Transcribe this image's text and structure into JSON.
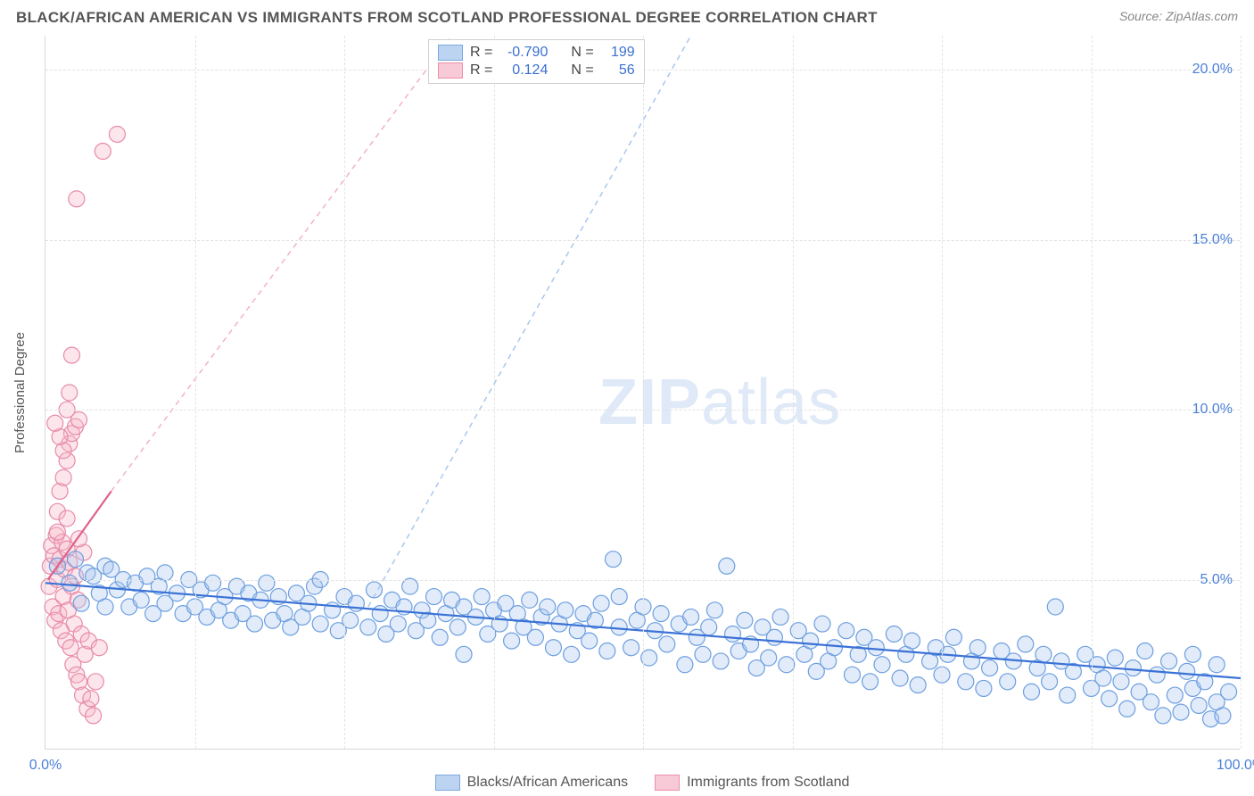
{
  "header": {
    "title": "BLACK/AFRICAN AMERICAN VS IMMIGRANTS FROM SCOTLAND PROFESSIONAL DEGREE CORRELATION CHART",
    "source_label": "Source: ",
    "source_value": "ZipAtlas.com"
  },
  "chart": {
    "type": "scatter",
    "y_axis_title": "Professional Degree",
    "background_color": "#ffffff",
    "grid_color": "#e3e3e3",
    "axis_color": "#d8d8d8",
    "xlim": [
      0,
      100
    ],
    "ylim": [
      0,
      21
    ],
    "x_ticks": [
      0,
      12.5,
      25,
      37.5,
      50,
      62.5,
      75,
      87.5,
      100
    ],
    "x_tick_labels": {
      "0": "0.0%",
      "100": "100.0%"
    },
    "y_ticks": [
      5,
      10,
      15,
      20
    ],
    "y_tick_labels": {
      "5": "5.0%",
      "10": "10.0%",
      "15": "15.0%",
      "20": "20.0%"
    },
    "marker_radius": 9,
    "marker_fill_opacity": 0.35,
    "marker_stroke_width": 1.2,
    "watermark_text_bold": "ZIP",
    "watermark_text_rest": "atlas",
    "watermark_color": "#dfe9f7"
  },
  "legend_top": {
    "rows": [
      {
        "swatch": "blue",
        "r_label": "R =",
        "r_value": "-0.790",
        "n_label": "N =",
        "n_value": "199"
      },
      {
        "swatch": "pink",
        "r_label": "R =",
        "r_value": "0.124",
        "n_label": "N =",
        "n_value": "56"
      }
    ]
  },
  "legend_bottom": {
    "items": [
      {
        "swatch": "blue",
        "label": "Blacks/African Americans"
      },
      {
        "swatch": "pink",
        "label": "Immigrants from Scotland"
      }
    ]
  },
  "series": {
    "blue": {
      "color_fill": "#a9c7ee",
      "color_stroke": "#6d9fe0",
      "trend": {
        "x1": 0,
        "y1": 4.9,
        "x2": 100,
        "y2": 2.1,
        "color": "#3b72d6",
        "width": 2.2,
        "dash": "none",
        "extrap": {
          "x1": 27,
          "y1": 4.2,
          "x2": 54,
          "y2": 21,
          "dash": "6,5",
          "color": "#a9c7ee"
        }
      },
      "points": [
        [
          1,
          5.4
        ],
        [
          2,
          4.9
        ],
        [
          2.5,
          5.6
        ],
        [
          3,
          4.3
        ],
        [
          3.5,
          5.2
        ],
        [
          4,
          5.1
        ],
        [
          4.5,
          4.6
        ],
        [
          5,
          5.4
        ],
        [
          5,
          4.2
        ],
        [
          5.5,
          5.3
        ],
        [
          6,
          4.7
        ],
        [
          6.5,
          5.0
        ],
        [
          7,
          4.2
        ],
        [
          7.5,
          4.9
        ],
        [
          8,
          4.4
        ],
        [
          8.5,
          5.1
        ],
        [
          9,
          4.0
        ],
        [
          9.5,
          4.8
        ],
        [
          10,
          4.3
        ],
        [
          10,
          5.2
        ],
        [
          11,
          4.6
        ],
        [
          11.5,
          4.0
        ],
        [
          12,
          5.0
        ],
        [
          12.5,
          4.2
        ],
        [
          13,
          4.7
        ],
        [
          13.5,
          3.9
        ],
        [
          14,
          4.9
        ],
        [
          14.5,
          4.1
        ],
        [
          15,
          4.5
        ],
        [
          15.5,
          3.8
        ],
        [
          16,
          4.8
        ],
        [
          16.5,
          4.0
        ],
        [
          17,
          4.6
        ],
        [
          17.5,
          3.7
        ],
        [
          18,
          4.4
        ],
        [
          18.5,
          4.9
        ],
        [
          19,
          3.8
        ],
        [
          19.5,
          4.5
        ],
        [
          20,
          4.0
        ],
        [
          20.5,
          3.6
        ],
        [
          21,
          4.6
        ],
        [
          21.5,
          3.9
        ],
        [
          22,
          4.3
        ],
        [
          22.5,
          4.8
        ],
        [
          23,
          3.7
        ],
        [
          23,
          5.0
        ],
        [
          24,
          4.1
        ],
        [
          24.5,
          3.5
        ],
        [
          25,
          4.5
        ],
        [
          25.5,
          3.8
        ],
        [
          26,
          4.3
        ],
        [
          27,
          3.6
        ],
        [
          27.5,
          4.7
        ],
        [
          28,
          4.0
        ],
        [
          28.5,
          3.4
        ],
        [
          29,
          4.4
        ],
        [
          29.5,
          3.7
        ],
        [
          30,
          4.2
        ],
        [
          30.5,
          4.8
        ],
        [
          31,
          3.5
        ],
        [
          31.5,
          4.1
        ],
        [
          32,
          3.8
        ],
        [
          32.5,
          4.5
        ],
        [
          33,
          3.3
        ],
        [
          33.5,
          4.0
        ],
        [
          34,
          4.4
        ],
        [
          34.5,
          3.6
        ],
        [
          35,
          4.2
        ],
        [
          35,
          2.8
        ],
        [
          36,
          3.9
        ],
        [
          36.5,
          4.5
        ],
        [
          37,
          3.4
        ],
        [
          37.5,
          4.1
        ],
        [
          38,
          3.7
        ],
        [
          38.5,
          4.3
        ],
        [
          39,
          3.2
        ],
        [
          39.5,
          4.0
        ],
        [
          40,
          3.6
        ],
        [
          40.5,
          4.4
        ],
        [
          41,
          3.3
        ],
        [
          41.5,
          3.9
        ],
        [
          42,
          4.2
        ],
        [
          42.5,
          3.0
        ],
        [
          43,
          3.7
        ],
        [
          43.5,
          4.1
        ],
        [
          44,
          2.8
        ],
        [
          44.5,
          3.5
        ],
        [
          45,
          4.0
        ],
        [
          45.5,
          3.2
        ],
        [
          46,
          3.8
        ],
        [
          46.5,
          4.3
        ],
        [
          47,
          2.9
        ],
        [
          47.5,
          5.6
        ],
        [
          48,
          3.6
        ],
        [
          48,
          4.5
        ],
        [
          49,
          3.0
        ],
        [
          49.5,
          3.8
        ],
        [
          50,
          4.2
        ],
        [
          50.5,
          2.7
        ],
        [
          51,
          3.5
        ],
        [
          51.5,
          4.0
        ],
        [
          52,
          3.1
        ],
        [
          53,
          3.7
        ],
        [
          53.5,
          2.5
        ],
        [
          54,
          3.9
        ],
        [
          54.5,
          3.3
        ],
        [
          55,
          2.8
        ],
        [
          55.5,
          3.6
        ],
        [
          56,
          4.1
        ],
        [
          56.5,
          2.6
        ],
        [
          57,
          5.4
        ],
        [
          57.5,
          3.4
        ],
        [
          58,
          2.9
        ],
        [
          58.5,
          3.8
        ],
        [
          59,
          3.1
        ],
        [
          59.5,
          2.4
        ],
        [
          60,
          3.6
        ],
        [
          60.5,
          2.7
        ],
        [
          61,
          3.3
        ],
        [
          61.5,
          3.9
        ],
        [
          62,
          2.5
        ],
        [
          63,
          3.5
        ],
        [
          63.5,
          2.8
        ],
        [
          64,
          3.2
        ],
        [
          64.5,
          2.3
        ],
        [
          65,
          3.7
        ],
        [
          65.5,
          2.6
        ],
        [
          66,
          3.0
        ],
        [
          67,
          3.5
        ],
        [
          67.5,
          2.2
        ],
        [
          68,
          2.8
        ],
        [
          68.5,
          3.3
        ],
        [
          69,
          2.0
        ],
        [
          69.5,
          3.0
        ],
        [
          70,
          2.5
        ],
        [
          71,
          3.4
        ],
        [
          71.5,
          2.1
        ],
        [
          72,
          2.8
        ],
        [
          72.5,
          3.2
        ],
        [
          73,
          1.9
        ],
        [
          74,
          2.6
        ],
        [
          74.5,
          3.0
        ],
        [
          75,
          2.2
        ],
        [
          75.5,
          2.8
        ],
        [
          76,
          3.3
        ],
        [
          77,
          2.0
        ],
        [
          77.5,
          2.6
        ],
        [
          78,
          3.0
        ],
        [
          78.5,
          1.8
        ],
        [
          79,
          2.4
        ],
        [
          80,
          2.9
        ],
        [
          80.5,
          2.0
        ],
        [
          81,
          2.6
        ],
        [
          82,
          3.1
        ],
        [
          82.5,
          1.7
        ],
        [
          83,
          2.4
        ],
        [
          83.5,
          2.8
        ],
        [
          84,
          2.0
        ],
        [
          84.5,
          4.2
        ],
        [
          85,
          2.6
        ],
        [
          85.5,
          1.6
        ],
        [
          86,
          2.3
        ],
        [
          87,
          2.8
        ],
        [
          87.5,
          1.8
        ],
        [
          88,
          2.5
        ],
        [
          88.5,
          2.1
        ],
        [
          89,
          1.5
        ],
        [
          89.5,
          2.7
        ],
        [
          90,
          2.0
        ],
        [
          90.5,
          1.2
        ],
        [
          91,
          2.4
        ],
        [
          91.5,
          1.7
        ],
        [
          92,
          2.9
        ],
        [
          92.5,
          1.4
        ],
        [
          93,
          2.2
        ],
        [
          93.5,
          1.0
        ],
        [
          94,
          2.6
        ],
        [
          94.5,
          1.6
        ],
        [
          95,
          1.1
        ],
        [
          95.5,
          2.3
        ],
        [
          96,
          1.8
        ],
        [
          96,
          2.8
        ],
        [
          96.5,
          1.3
        ],
        [
          97,
          2.0
        ],
        [
          97.5,
          0.9
        ],
        [
          98,
          2.5
        ],
        [
          98,
          1.4
        ],
        [
          98.5,
          1.0
        ],
        [
          99,
          1.7
        ]
      ]
    },
    "pink": {
      "color_fill": "#f5b7c9",
      "color_stroke": "#e78aa9",
      "trend": {
        "x1": 0.2,
        "y1": 5.0,
        "x2": 5.5,
        "y2": 7.6,
        "color": "#e06088",
        "width": 2.2,
        "dash": "none",
        "extrap": {
          "x1": 5.5,
          "y1": 7.6,
          "x2": 34,
          "y2": 21,
          "dash": "6,5",
          "color": "#f3b2c5"
        }
      },
      "points": [
        [
          0.3,
          4.8
        ],
        [
          0.4,
          5.4
        ],
        [
          0.5,
          6.0
        ],
        [
          0.6,
          4.2
        ],
        [
          0.7,
          5.7
        ],
        [
          0.8,
          3.8
        ],
        [
          0.9,
          6.3
        ],
        [
          1.0,
          5.0
        ],
        [
          1.1,
          4.0
        ],
        [
          1.2,
          5.6
        ],
        [
          1.3,
          3.5
        ],
        [
          1.4,
          6.1
        ],
        [
          1.5,
          4.5
        ],
        [
          1.6,
          5.3
        ],
        [
          1.7,
          3.2
        ],
        [
          1.8,
          5.9
        ],
        [
          1.9,
          4.1
        ],
        [
          2.0,
          5.5
        ],
        [
          2.1,
          3.0
        ],
        [
          2.2,
          4.8
        ],
        [
          2.3,
          2.5
        ],
        [
          2.4,
          3.7
        ],
        [
          2.5,
          5.1
        ],
        [
          2.6,
          2.2
        ],
        [
          2.7,
          4.4
        ],
        [
          2.8,
          2.0
        ],
        [
          3.0,
          3.4
        ],
        [
          3.1,
          1.6
        ],
        [
          3.3,
          2.8
        ],
        [
          3.5,
          1.2
        ],
        [
          3.6,
          3.2
        ],
        [
          3.8,
          1.5
        ],
        [
          4.0,
          1.0
        ],
        [
          4.2,
          2.0
        ],
        [
          4.5,
          3.0
        ],
        [
          1.0,
          7.0
        ],
        [
          1.2,
          7.6
        ],
        [
          1.5,
          8.0
        ],
        [
          1.8,
          8.5
        ],
        [
          2.0,
          9.0
        ],
        [
          2.2,
          9.3
        ],
        [
          2.5,
          9.5
        ],
        [
          2.8,
          9.7
        ],
        [
          1.8,
          10.0
        ],
        [
          2.0,
          10.5
        ],
        [
          2.2,
          11.6
        ],
        [
          1.5,
          8.8
        ],
        [
          1.2,
          9.2
        ],
        [
          2.6,
          16.2
        ],
        [
          4.8,
          17.6
        ],
        [
          6.0,
          18.1
        ],
        [
          0.8,
          9.6
        ],
        [
          1.8,
          6.8
        ],
        [
          1.0,
          6.4
        ],
        [
          3.2,
          5.8
        ],
        [
          2.8,
          6.2
        ]
      ]
    }
  }
}
